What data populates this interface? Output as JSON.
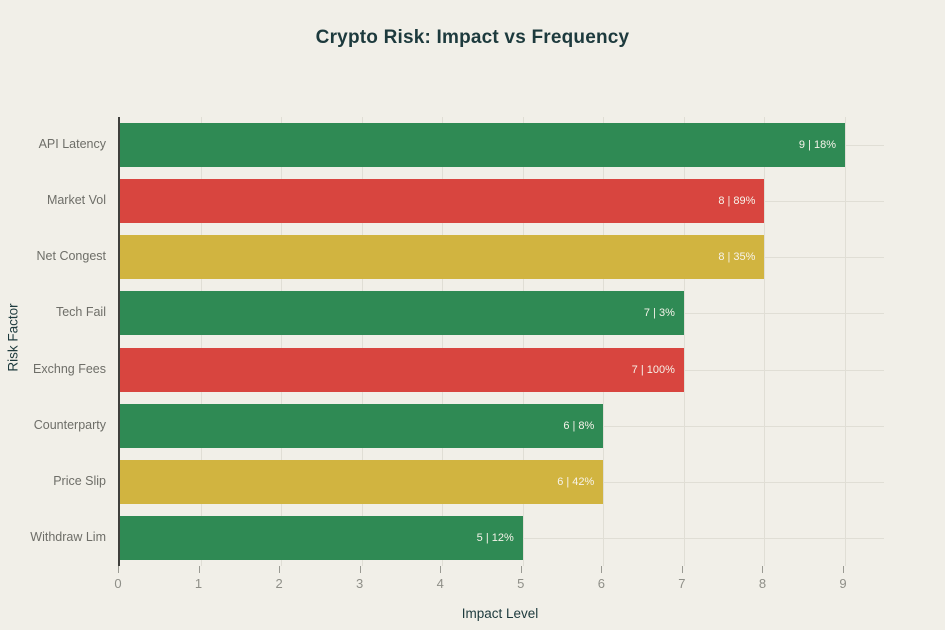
{
  "title": "Crypto Risk: Impact vs Frequency",
  "colors": {
    "background": "#f1efe8",
    "title_text": "#1d3a3d",
    "axis_spine": "#3f3f3c",
    "gridline": "#e0ded5",
    "tick_mark": "#9a9a93",
    "tick_text": "#8f8f88",
    "category_text": "#6e6e68",
    "bar_label_text": "#f6f3ea",
    "green": "#2f8a54",
    "red": "#d8453f",
    "yellow": "#d1b440"
  },
  "chart_data": {
    "type": "bar",
    "orientation": "horizontal",
    "title": "Crypto Risk: Impact vs Frequency",
    "xlabel": "Impact Level",
    "ylabel": "Risk Factor",
    "categories": [
      "API Latency",
      "Market Vol",
      "Net Congest",
      "Tech Fail",
      "Exchng Fees",
      "Counterparty",
      "Price Slip",
      "Withdraw Lim"
    ],
    "values": [
      9,
      8,
      8,
      7,
      7,
      6,
      6,
      5
    ],
    "bar_labels": [
      "9 | 18%",
      "8 | 89%",
      "8 | 35%",
      "7 | 3%",
      "7 | 100%",
      "6 | 8%",
      "6 | 42%",
      "5 | 12%"
    ],
    "bar_colors": [
      "green",
      "red",
      "yellow",
      "green",
      "red",
      "green",
      "yellow",
      "green"
    ],
    "xticks": [
      0,
      1,
      2,
      3,
      4,
      5,
      6,
      7,
      8,
      9
    ],
    "xlim": [
      0,
      9.5
    ],
    "grid": true,
    "legend": false
  }
}
